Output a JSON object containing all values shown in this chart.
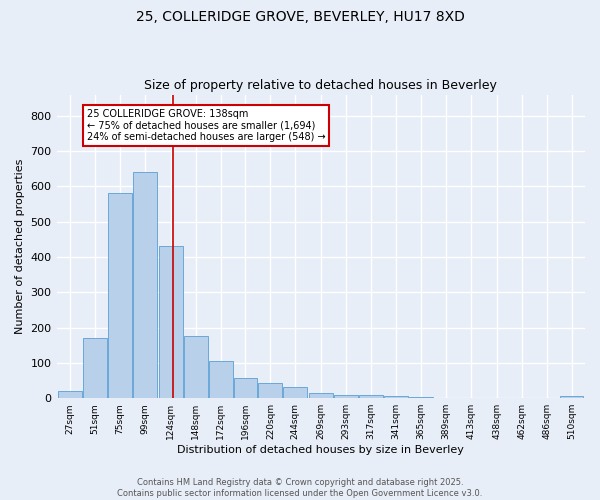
{
  "title1": "25, COLLERIDGE GROVE, BEVERLEY, HU17 8XD",
  "title2": "Size of property relative to detached houses in Beverley",
  "xlabel": "Distribution of detached houses by size in Beverley",
  "ylabel": "Number of detached properties",
  "bin_edges": [
    27,
    51,
    75,
    99,
    124,
    148,
    172,
    196,
    220,
    244,
    269,
    293,
    317,
    341,
    365,
    389,
    413,
    438,
    462,
    486,
    510
  ],
  "bar_heights": [
    20,
    170,
    580,
    640,
    430,
    175,
    105,
    57,
    42,
    32,
    15,
    10,
    8,
    6,
    4,
    2,
    2,
    1,
    0,
    0,
    5
  ],
  "bar_color": "#b8d0ea",
  "bar_edge_color": "#5a9fd4",
  "property_size": 138,
  "red_line_color": "#cc0000",
  "annotation_text": "25 COLLERIDGE GROVE: 138sqm\n← 75% of detached houses are smaller (1,694)\n24% of semi-detached houses are larger (548) →",
  "annotation_box_color": "#ffffff",
  "annotation_box_edge": "#cc0000",
  "ylim": [
    0,
    860
  ],
  "yticks": [
    0,
    100,
    200,
    300,
    400,
    500,
    600,
    700,
    800
  ],
  "footer1": "Contains HM Land Registry data © Crown copyright and database right 2025.",
  "footer2": "Contains public sector information licensed under the Open Government Licence v3.0.",
  "background_color": "#e8eef8",
  "grid_color": "#ffffff"
}
